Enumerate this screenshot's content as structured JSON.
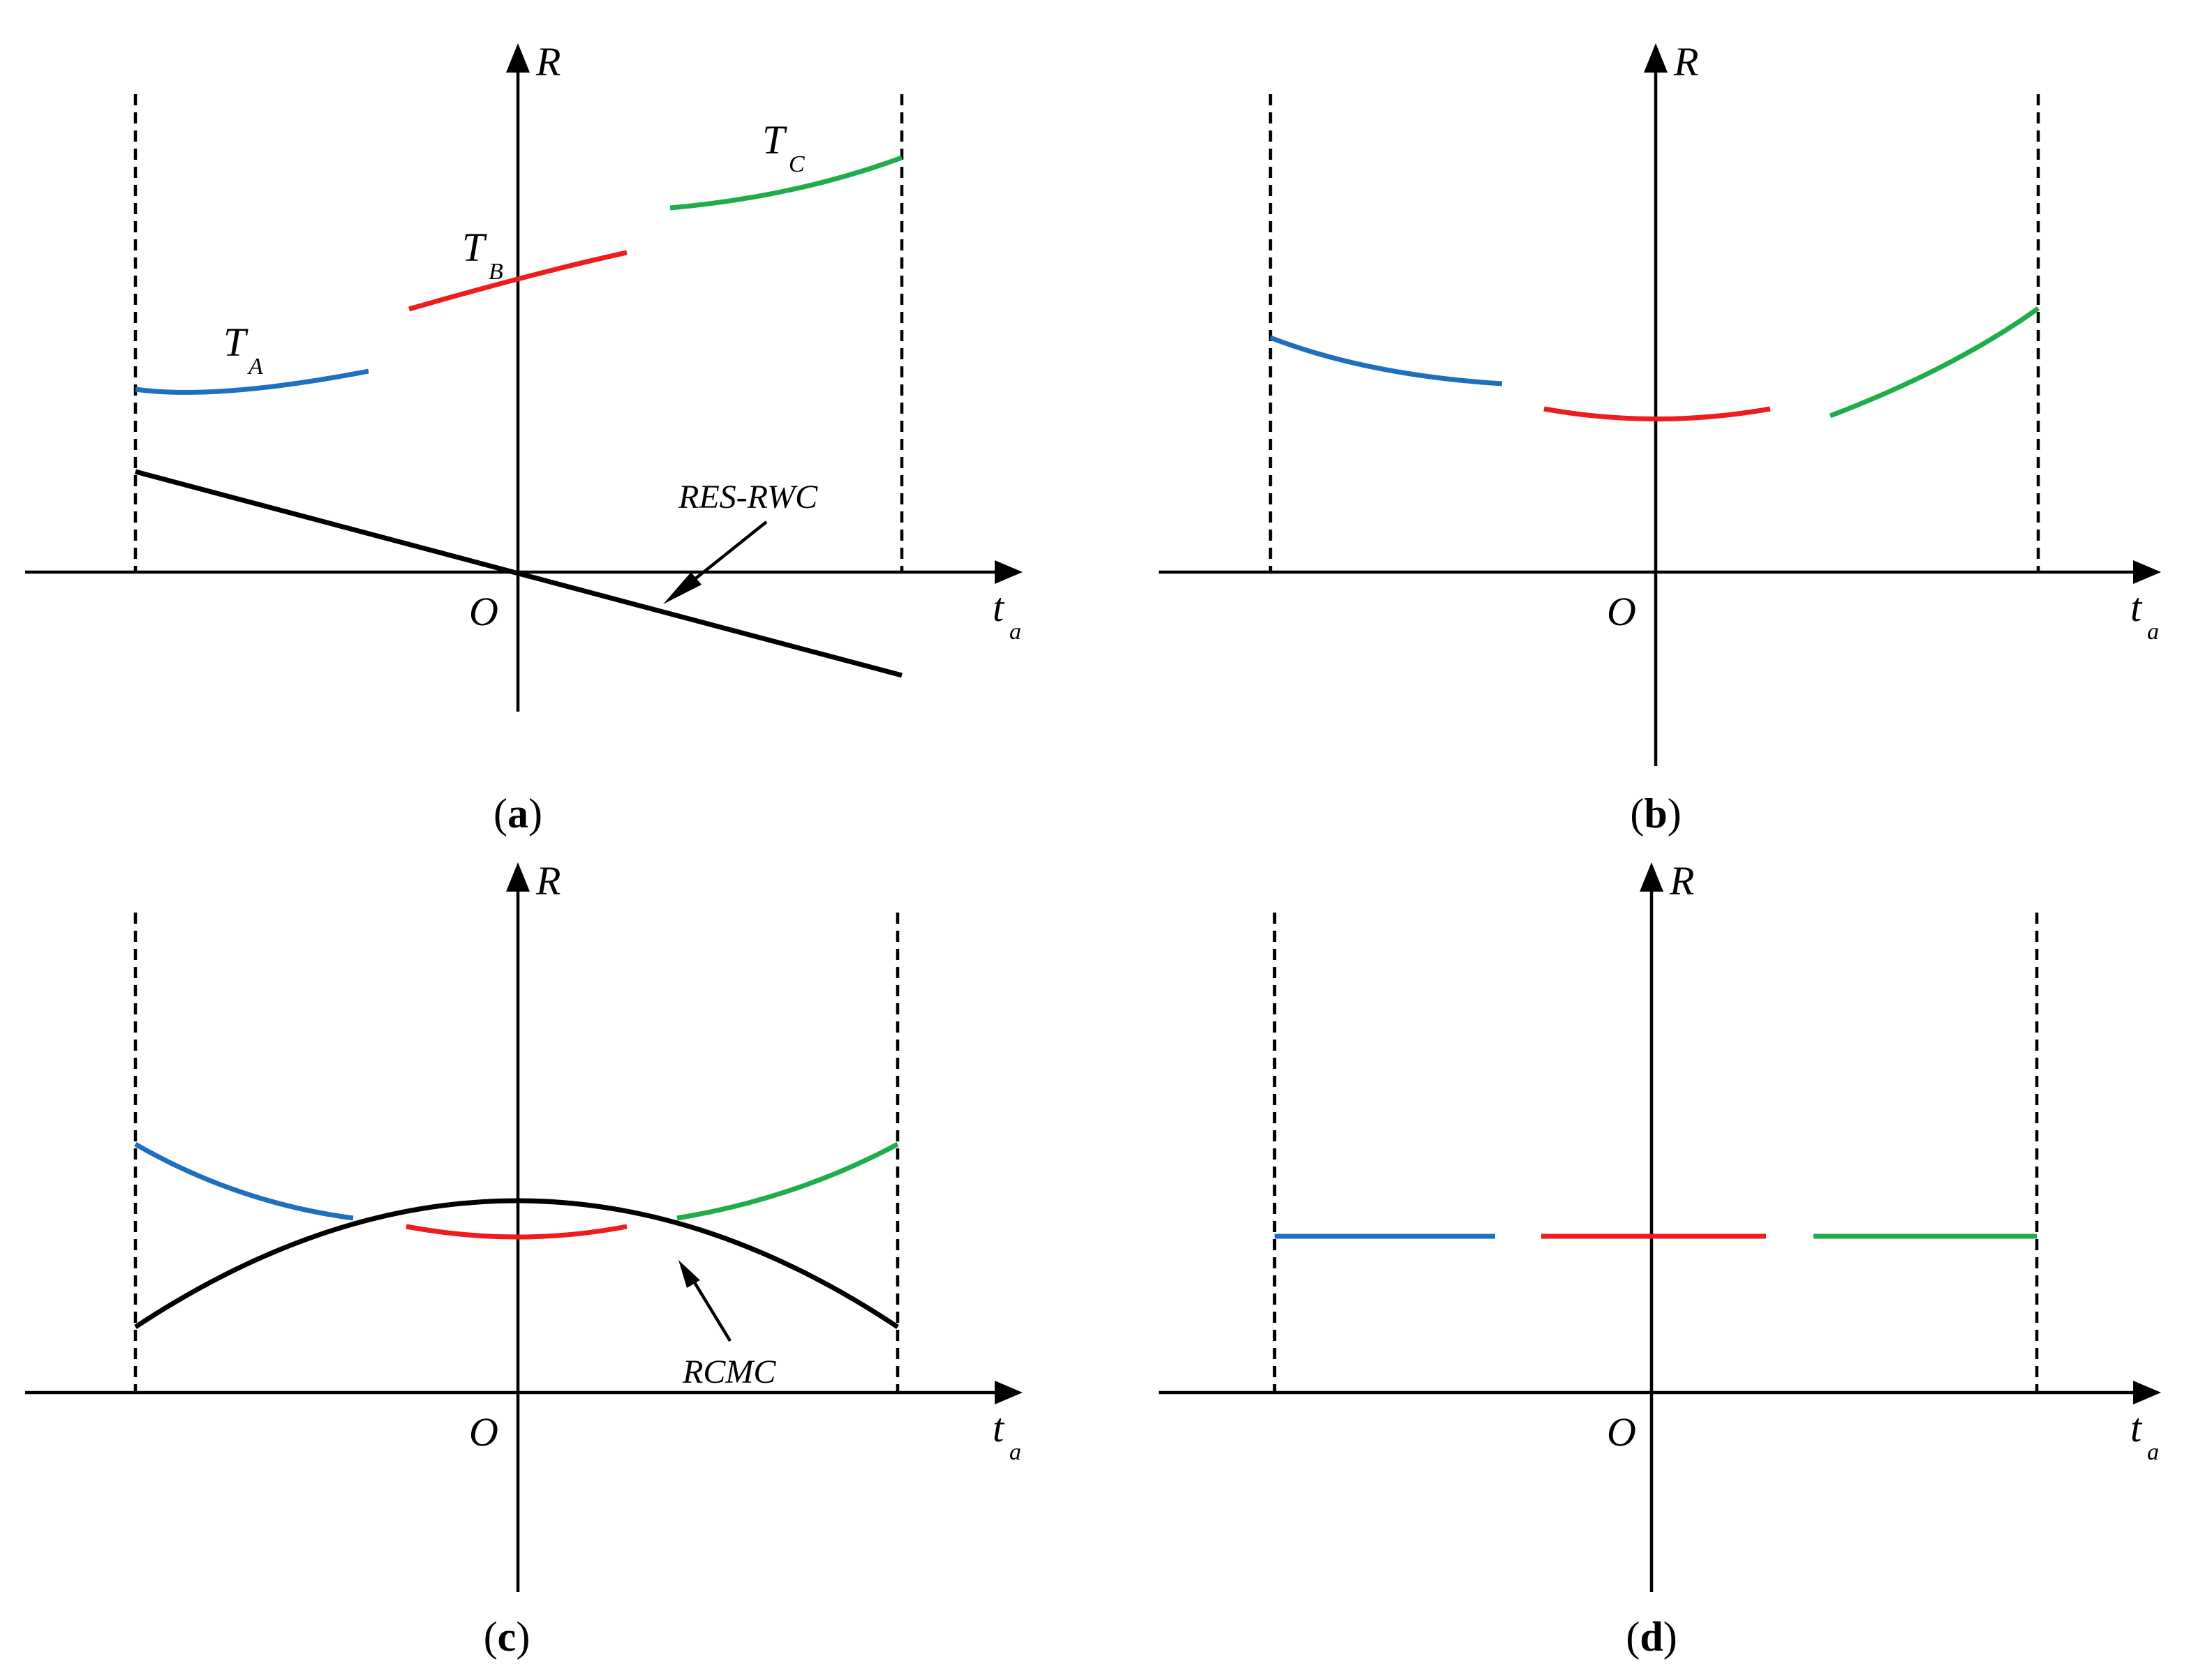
{
  "colors": {
    "target_a": "#1f6fbf",
    "target_b": "#ee1c1c",
    "target_c": "#1fad4b",
    "axes": "#000000"
  },
  "labels": {
    "r_axis": "R",
    "t_axis": "t",
    "t_axis_sub": "a",
    "origin": "O"
  },
  "targets": {
    "a": {
      "letter": "T",
      "sub": "A"
    },
    "b": {
      "letter": "T",
      "sub": "B"
    },
    "c": {
      "letter": "T",
      "sub": "C"
    }
  },
  "panels": [
    {
      "id": "a",
      "caption": "a",
      "annotation": "RES-RWC"
    },
    {
      "id": "b",
      "caption": "b",
      "annotation": ""
    },
    {
      "id": "c",
      "caption": "c",
      "annotation": "RCMC"
    },
    {
      "id": "d",
      "caption": "d",
      "annotation": ""
    }
  ]
}
